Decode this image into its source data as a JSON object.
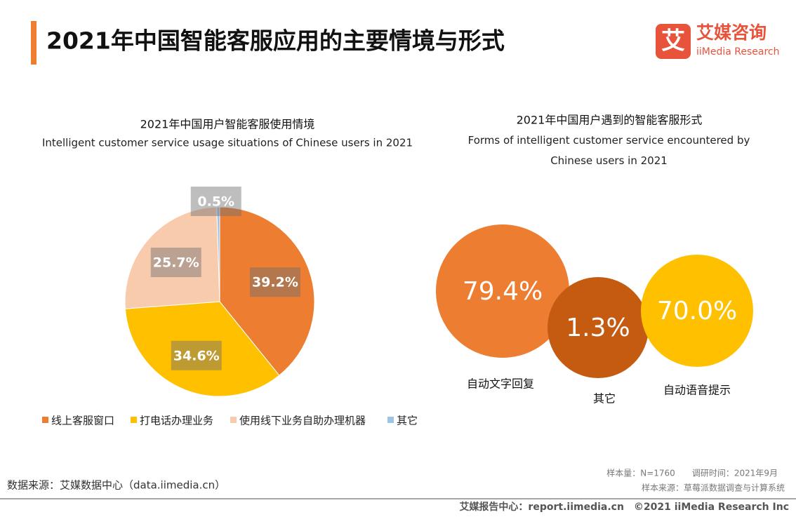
{
  "header": {
    "title": "2021年中国智能客服应用的主要情境与形式",
    "logo_icon": "艾",
    "logo_cn": "艾媒咨询",
    "logo_en": "iiMedia Research"
  },
  "chart_data": [
    {
      "type": "pie",
      "title": "2021年中国用户智能客服使用情境",
      "subtitle": "Intelligent customer service usage situations of Chinese users in 2021",
      "categories": [
        "线上客服窗口",
        "打电话办理业务",
        "使用线下业务自助办理机器",
        "其它"
      ],
      "values": [
        39.2,
        34.6,
        25.7,
        0.5
      ],
      "value_labels": [
        "39.2%",
        "34.6%",
        "25.7%",
        "0.5%"
      ],
      "colors": [
        "#ED7D31",
        "#FFC000",
        "#F8CBAD",
        "#9DC3E6"
      ],
      "legend": "bottom"
    },
    {
      "type": "bubble",
      "title": "2021年中国用户遇到的智能客服形式",
      "subtitle": "Forms of intelligent customer service encountered by Chinese users in 2021",
      "categories": [
        "自动文字回复",
        "其它",
        "自动语音提示"
      ],
      "values": [
        79.4,
        1.3,
        70.0
      ],
      "value_labels": [
        "79.4%",
        "1.3%",
        "70.0%"
      ],
      "colors": [
        "#ED7D31",
        "#C55A11",
        "#FFC000"
      ]
    }
  ],
  "footer": {
    "source": "数据来源：艾媒数据中心（data.iimedia.cn）",
    "sample": "样本量：N=1760　　调研时间：2021年9月",
    "sample_source": "样本来源：草莓派数据调查与计算系统",
    "copyright": "艾媒报告中心：report.iimedia.cn　©2021  iiMedia Research  Inc"
  }
}
